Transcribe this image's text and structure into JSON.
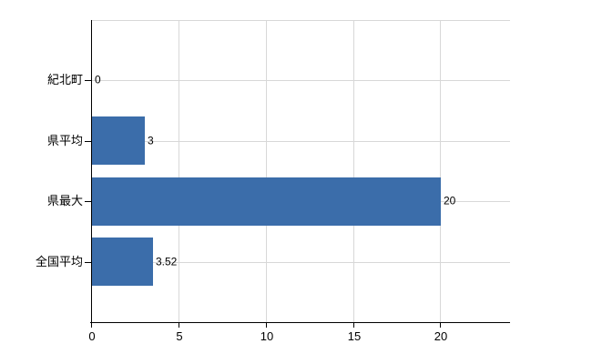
{
  "chart": {
    "background_color": "#ffffff",
    "bar_color": "#3b6daa",
    "grid_color": "#d8d8d8",
    "axis_color": "#000000",
    "text_color": "#000000"
  },
  "chart_data": {
    "type": "bar",
    "orientation": "horizontal",
    "categories": [
      "紀北町",
      "県平均",
      "県最大",
      "全国平均"
    ],
    "values": [
      0,
      3,
      20,
      3.52
    ],
    "value_labels": [
      "0",
      "3",
      "20",
      "3.52"
    ],
    "xlim": [
      0,
      24
    ],
    "xticks": [
      0,
      5,
      10,
      15,
      20
    ],
    "xtick_labels": [
      "0",
      "5",
      "10",
      "15",
      "20"
    ],
    "grid": "on",
    "legend": "none",
    "gridline_positions": "at each x tick and through each category row, plus plot-top border"
  }
}
